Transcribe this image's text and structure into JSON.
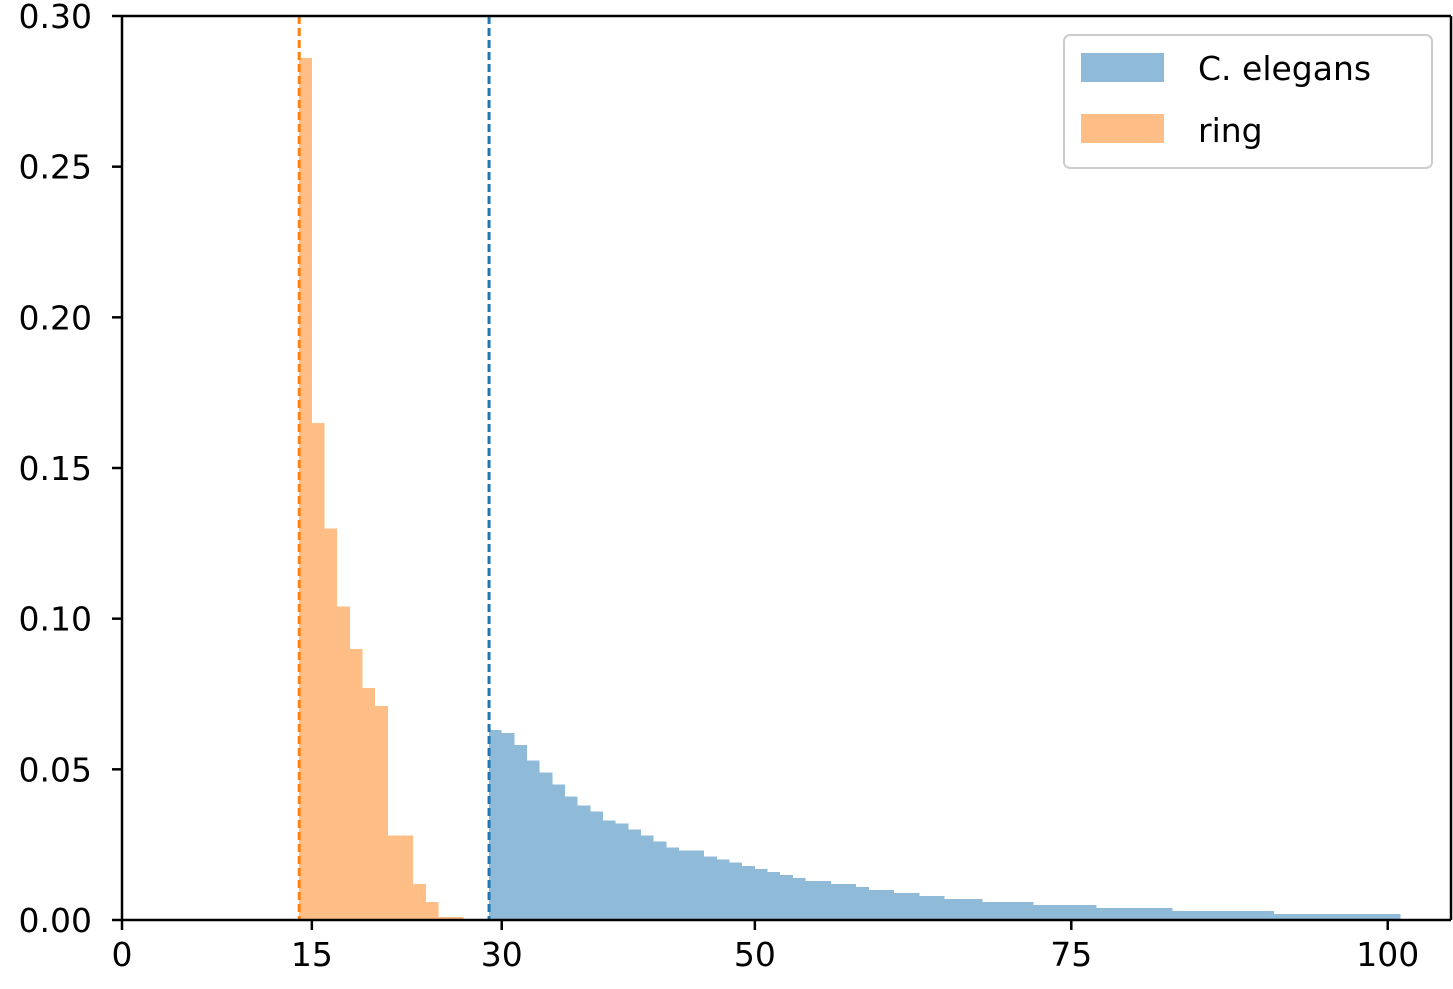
{
  "chart_data": {
    "type": "bar",
    "title": "",
    "xlabel": "",
    "ylabel": "",
    "xlim": [
      0,
      105
    ],
    "ylim": [
      0,
      0.3
    ],
    "xticks": [
      0,
      15,
      30,
      50,
      75,
      100
    ],
    "xtick_labels": [
      "0",
      "15",
      "30",
      "50",
      "75",
      "100"
    ],
    "yticks": [
      0,
      0.05,
      0.1,
      0.15,
      0.2,
      0.25,
      0.3
    ],
    "ytick_labels": [
      "0.00",
      "0.05",
      "0.10",
      "0.15",
      "0.20",
      "0.25",
      "0.30"
    ],
    "grid": false,
    "legend_position": "top-right",
    "series": [
      {
        "name": "C. elegans",
        "color": "#1f77b4",
        "fill_color": "#8fbad8",
        "bin_width": 1,
        "bin_start": 29,
        "values": [
          0.063,
          0.062,
          0.058,
          0.053,
          0.049,
          0.045,
          0.041,
          0.038,
          0.036,
          0.033,
          0.032,
          0.03,
          0.028,
          0.026,
          0.024,
          0.023,
          0.023,
          0.021,
          0.02,
          0.019,
          0.018,
          0.017,
          0.016,
          0.015,
          0.014,
          0.013,
          0.013,
          0.012,
          0.012,
          0.011,
          0.01,
          0.01,
          0.009,
          0.009,
          0.008,
          0.008,
          0.007,
          0.007,
          0.007,
          0.006,
          0.006,
          0.006,
          0.006,
          0.005,
          0.005,
          0.005,
          0.005,
          0.005,
          0.004,
          0.004,
          0.004,
          0.004,
          0.004,
          0.004,
          0.003,
          0.003,
          0.003,
          0.003,
          0.003,
          0.003,
          0.003,
          0.003,
          0.002,
          0.002,
          0.002,
          0.002,
          0.002,
          0.002,
          0.002,
          0.002,
          0.002,
          0.002
        ],
        "mean_line_x": 29,
        "mean_line_color": "#1f77b4"
      },
      {
        "name": "ring",
        "color": "#ff7f0e",
        "fill_color": "#ffbe86",
        "bin_width": 1,
        "bin_start": 14,
        "values": [
          0.286,
          0.165,
          0.13,
          0.104,
          0.09,
          0.077,
          0.071,
          0.028,
          0.028,
          0.012,
          0.006,
          0.001,
          0.001
        ],
        "mean_line_x": 14,
        "mean_line_color": "#ff7f0e"
      }
    ]
  }
}
